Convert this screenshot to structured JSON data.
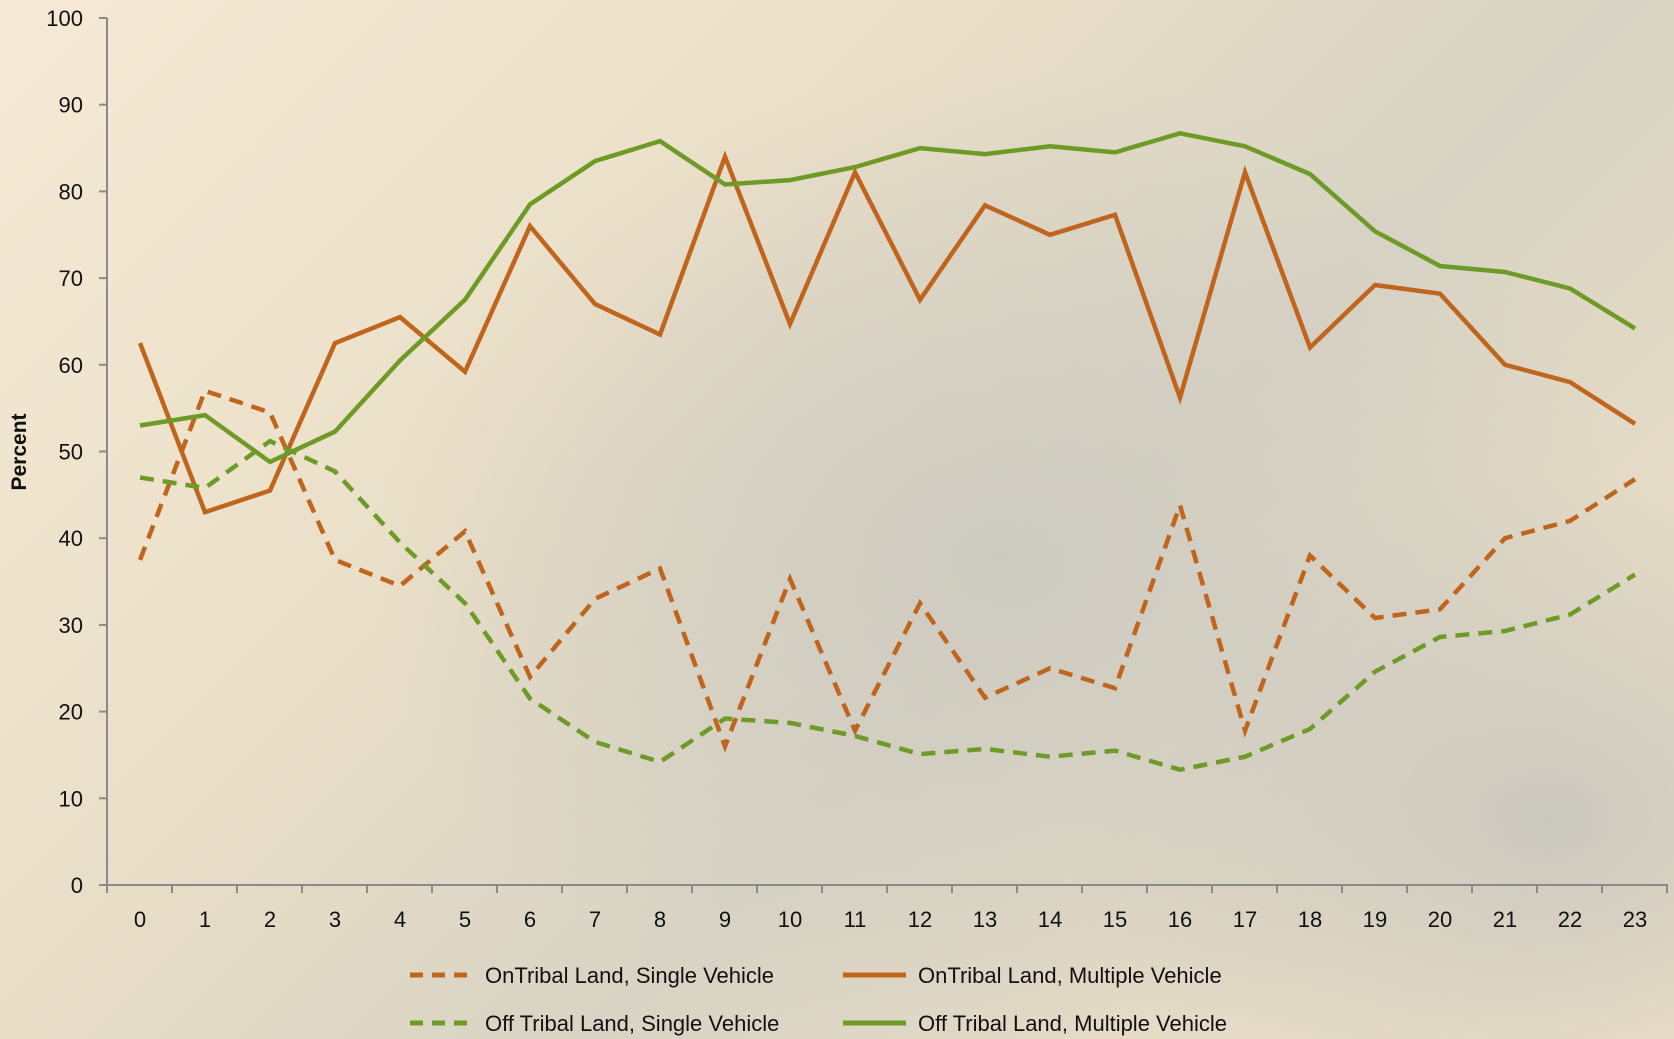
{
  "chart_data": {
    "type": "line",
    "title": "",
    "xlabel": "",
    "ylabel": "Percent",
    "ylim": [
      0,
      100
    ],
    "yticks": [
      0,
      10,
      20,
      30,
      40,
      50,
      60,
      70,
      80,
      90,
      100
    ],
    "categories": [
      "0",
      "1",
      "2",
      "3",
      "4",
      "5",
      "6",
      "7",
      "8",
      "9",
      "10",
      "11",
      "12",
      "13",
      "14",
      "15",
      "16",
      "17",
      "18",
      "19",
      "20",
      "21",
      "22",
      "23"
    ],
    "grid": false,
    "legend_position": "bottom",
    "series": [
      {
        "name": "OnTribal Land, Single Vehicle",
        "color": "#c0651e",
        "dash": "dashed",
        "values": [
          37.5,
          57,
          54.5,
          37.5,
          34.5,
          40.8,
          24,
          33,
          36.5,
          16,
          35.3,
          17.8,
          32.5,
          21.6,
          25,
          22.7,
          43.8,
          17.8,
          38,
          30.8,
          31.8,
          40,
          42,
          46.8
        ]
      },
      {
        "name": "OnTribal Land, Multiple Vehicle",
        "color": "#c0651e",
        "dash": "solid",
        "values": [
          62.5,
          43,
          45.5,
          62.5,
          65.5,
          59.2,
          76,
          67,
          63.5,
          84,
          64.7,
          82.2,
          67.5,
          78.4,
          75,
          77.3,
          56.2,
          82.2,
          62,
          69.2,
          68.2,
          60,
          58,
          53.2
        ]
      },
      {
        "name": "Off Tribal Land, Single Vehicle",
        "color": "#6e9b27",
        "dash": "dashed",
        "values": [
          47,
          45.8,
          51.2,
          47.7,
          39.5,
          32.5,
          21.5,
          16.5,
          14.2,
          19.2,
          18.7,
          17.2,
          15.1,
          15.7,
          14.8,
          15.5,
          13.3,
          14.8,
          18,
          24.6,
          28.6,
          29.3,
          31.2,
          35.8
        ]
      },
      {
        "name": "Off Tribal Land, Multiple Vehicle",
        "color": "#6e9b27",
        "dash": "solid",
        "values": [
          53,
          54.2,
          48.8,
          52.3,
          60.5,
          67.5,
          78.5,
          83.5,
          85.8,
          80.8,
          81.3,
          82.8,
          85,
          84.3,
          85.2,
          84.5,
          86.7,
          85.2,
          82,
          75.4,
          71.4,
          70.7,
          68.8,
          64.2
        ]
      }
    ]
  }
}
